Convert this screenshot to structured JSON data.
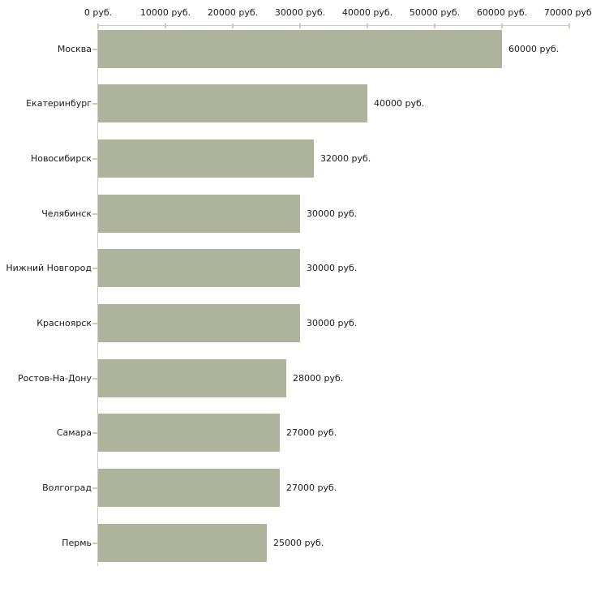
{
  "chart_data": {
    "type": "bar",
    "orientation": "horizontal",
    "title": "",
    "xlabel": "",
    "ylabel": "",
    "categories": [
      "Москва",
      "Екатеринбург",
      "Новосибирск",
      "Челябинск",
      "Нижний Новгород",
      "Красноярск",
      "Ростов-На-Дону",
      "Самара",
      "Волгоград",
      "Пермь"
    ],
    "values": [
      60000,
      40000,
      32000,
      30000,
      30000,
      30000,
      28000,
      27000,
      27000,
      25000
    ],
    "value_labels": [
      "60000 руб.",
      "40000 руб.",
      "32000 руб.",
      "30000 руб.",
      "30000 руб.",
      "30000 руб.",
      "28000 руб.",
      "27000 руб.",
      "27000 руб.",
      "25000 руб."
    ],
    "xlim": [
      0,
      70000
    ],
    "x_ticks": [
      0,
      10000,
      20000,
      30000,
      40000,
      50000,
      60000,
      70000
    ],
    "x_tick_labels": [
      "0 руб.",
      "10000 руб.",
      "20000 руб.",
      "30000 руб.",
      "40000 руб.",
      "50000 руб.",
      "60000 руб.",
      "70000 руб."
    ],
    "axis_position": "top",
    "grid": false,
    "legend": null,
    "colors": {
      "bar_fill": "#aeb49b",
      "axis_line": "#cccccc",
      "tick_mark": "#d2cba6",
      "text": "#1a1a1a",
      "background": "#ffffff"
    }
  }
}
